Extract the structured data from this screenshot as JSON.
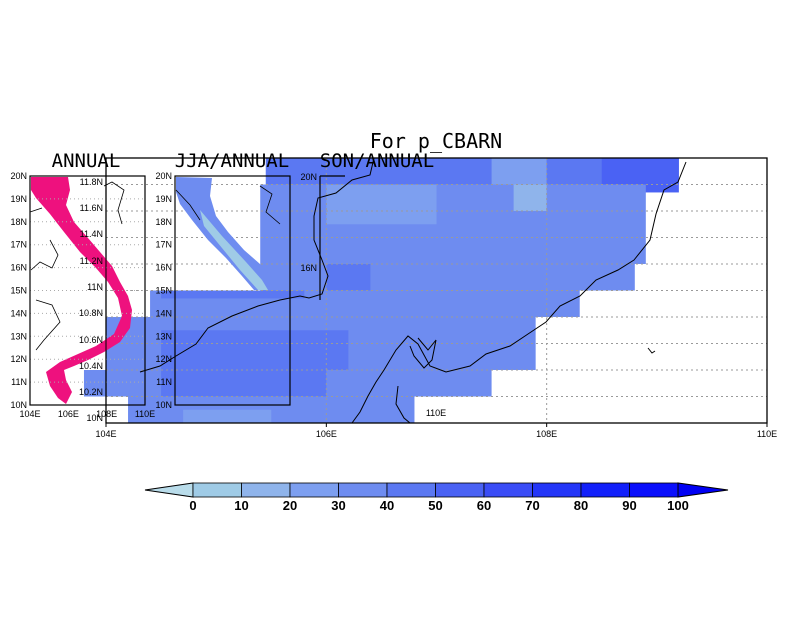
{
  "main_title": "For p_CBARN",
  "panel_titles": [
    "ANNUAL",
    "JJA/ANNUAL",
    "SON/ANNUAL"
  ],
  "colors": {
    "annual_fill": "#ee117e",
    "level_colors": [
      "#9fcbe6",
      "#8fb4eb",
      "#7d9ff0",
      "#6e8cf0",
      "#5b78f2",
      "#4a62f4",
      "#3a4cf6",
      "#2436f8",
      "#1220fa",
      "#0a0ffc"
    ],
    "below_color": "#b9dcea",
    "above_color": "#0000f4"
  },
  "chart_data": [
    {
      "type": "heatmap",
      "title": "For p_CBARN",
      "xlim": [
        104,
        110
      ],
      "ylim": [
        10,
        20
      ],
      "x_ticks": [
        "104E",
        "106E",
        "108E",
        "110E"
      ],
      "y_ticks": [
        "10N",
        "11N",
        "12N",
        "13N",
        "14N",
        "15N",
        "16N",
        "17N",
        "18N",
        "19N",
        "20N"
      ],
      "colorbar": {
        "levels": [
          0,
          10,
          20,
          30,
          40,
          50,
          60,
          70,
          80,
          90,
          100
        ],
        "labels": [
          "0",
          "10",
          "20",
          "30",
          "40",
          "50",
          "60",
          "70",
          "80",
          "90",
          "100"
        ]
      },
      "grid": true
    },
    {
      "type": "heatmap",
      "title": "ANNUAL",
      "xlim": [
        104,
        110
      ],
      "ylim": [
        10,
        20
      ],
      "x_ticks": [
        "104E",
        "106E",
        "108E",
        "110E"
      ],
      "y_ticks": [
        "10N",
        "11N",
        "12N",
        "13N",
        "14N",
        "15N",
        "16N",
        "17N",
        "18N",
        "19N",
        "20N"
      ]
    },
    {
      "type": "heatmap",
      "title": "JJA/ANNUAL",
      "xlim": [
        104,
        110
      ],
      "ylim": [
        10,
        20
      ],
      "y_ticks": [
        "10N",
        "11N",
        "12N",
        "13N",
        "14N",
        "15N",
        "16N",
        "17N",
        "18N",
        "19N",
        "20N"
      ]
    },
    {
      "type": "heatmap",
      "title": "SON/ANNUAL",
      "x_ticks": [
        "110E"
      ],
      "y_ticks": [
        "16N",
        "20N"
      ]
    },
    {
      "type": "heatmap",
      "title": "",
      "ylim": [
        10.2,
        11.8
      ],
      "y_ticks": [
        "11.8N",
        "11.6N",
        "11.4N",
        "11.2N",
        "11N",
        "10.8N",
        "10.6N",
        "10.4N",
        "10.2N",
        "10N"
      ],
      "x_ticks": [
        "104E"
      ]
    }
  ]
}
